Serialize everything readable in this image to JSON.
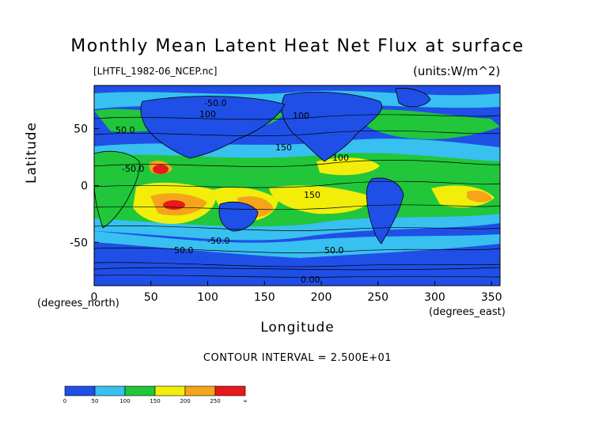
{
  "chart_data": {
    "type": "heatmap",
    "title": "Monthly Mean Latent Heat Net Flux at surface",
    "subtitle": "[LHTFL_1982-06_NCEP.nc]",
    "units": "(units:W/m^2)",
    "xlabel": "Longitude",
    "xlabel_unit": "(degrees_east)",
    "ylabel": "Latitude",
    "ylabel_unit": "(degrees_north)",
    "xlim": [
      0,
      357.5
    ],
    "ylim": [
      -88,
      88
    ],
    "x_ticks": [
      0,
      50,
      100,
      150,
      200,
      250,
      300,
      350
    ],
    "y_ticks": [
      50,
      0,
      -50
    ],
    "contour_interval_text": "CONTOUR INTERVAL = 2.500E+01",
    "contour_labels": [
      "-50.0",
      "100",
      "50.0",
      "-50.0",
      "150",
      "100",
      "100",
      "150",
      "-50.0",
      "0.00",
      "50.0",
      "50.0"
    ],
    "colorbar": {
      "tick_labels": [
        "0",
        "50",
        "100",
        "150",
        "200",
        "250",
        "∞"
      ],
      "colors": [
        "#1f4fe6",
        "#38c0f0",
        "#21c63b",
        "#f2ee0a",
        "#f5a51a",
        "#e8191b"
      ]
    }
  }
}
